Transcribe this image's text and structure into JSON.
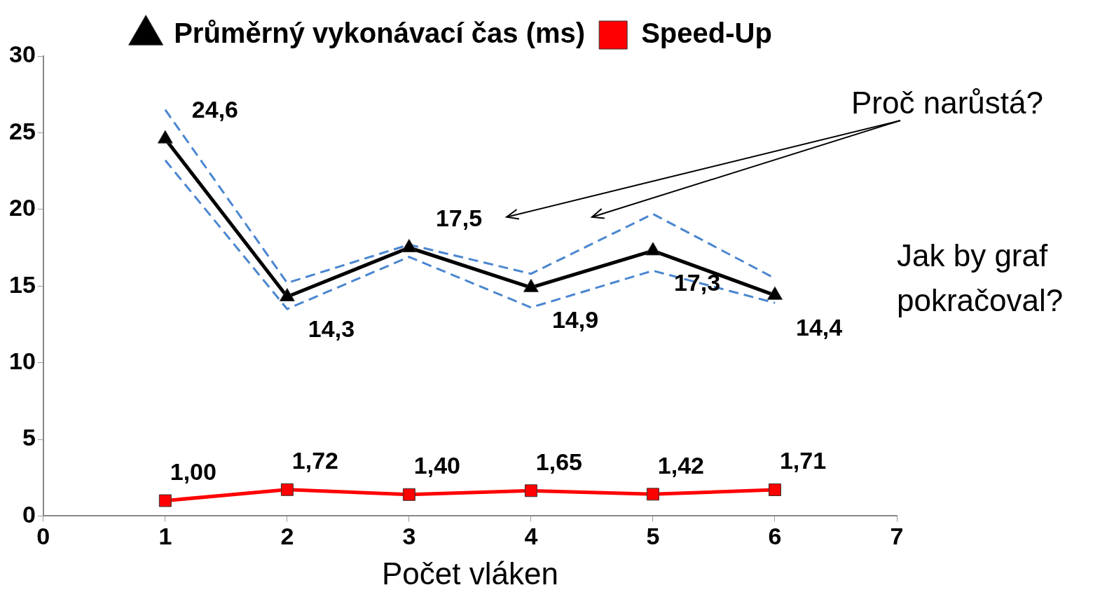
{
  "chart_data": {
    "type": "line",
    "xlabel": "Počet vláken",
    "x": [
      1,
      2,
      3,
      4,
      5,
      6
    ],
    "xlim": [
      0,
      7
    ],
    "xticks": [
      0,
      1,
      2,
      3,
      4,
      5,
      6,
      7
    ],
    "ylim": [
      0,
      30
    ],
    "yticks": [
      0,
      5,
      10,
      15,
      20,
      25,
      30
    ],
    "grid": false,
    "legend": "top",
    "series": [
      {
        "name": "Průměrný vykonávací čas (ms)",
        "color": "#000000",
        "marker": "triangle",
        "values": [
          24.6,
          14.3,
          17.5,
          14.9,
          17.3,
          14.4
        ],
        "value_labels": [
          "24,6",
          "14,3",
          "17,5",
          "14,9",
          "17,3",
          "14,4"
        ]
      },
      {
        "color": "#4a86d0",
        "marker": "none",
        "line_style": "dashed",
        "values": [
          26.5,
          15.2,
          17.7,
          15.8,
          19.7,
          15.5
        ]
      },
      {
        "color": "#4a86d0",
        "marker": "none",
        "line_style": "dashed",
        "values": [
          23.2,
          13.5,
          16.9,
          13.6,
          16.0,
          13.9
        ]
      },
      {
        "name": "Speed-Up",
        "color": "#ff0000",
        "marker": "square",
        "values": [
          1.0,
          1.72,
          1.4,
          1.65,
          1.42,
          1.71
        ],
        "value_labels": [
          "1,00",
          "1,72",
          "1,40",
          "1,65",
          "1,42",
          "1,71"
        ]
      }
    ],
    "annotations": [
      "Proč narůstá?",
      "Jak by graf pokračoval?"
    ]
  }
}
